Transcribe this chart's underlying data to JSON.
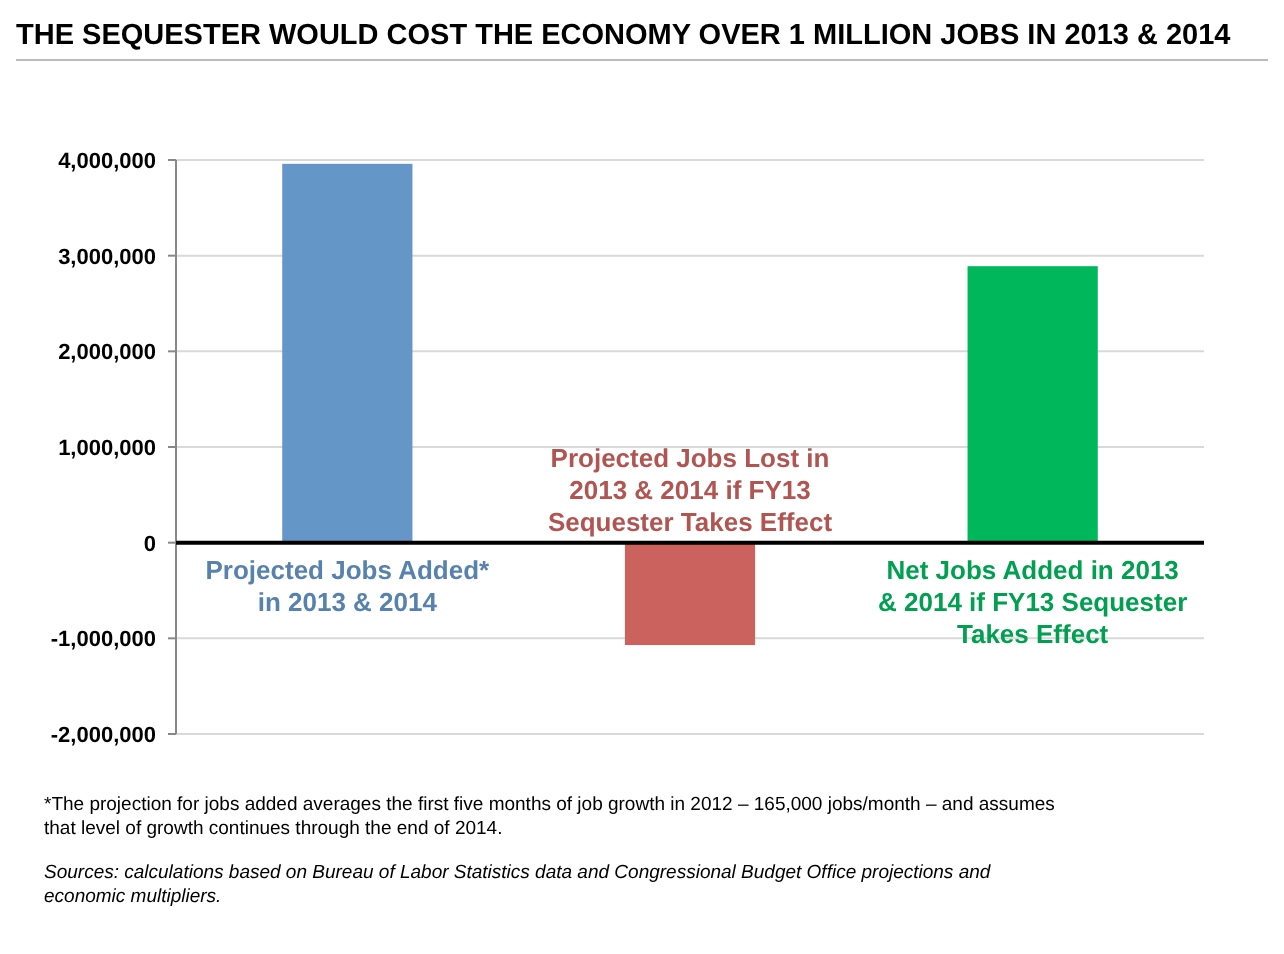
{
  "chart_data": {
    "type": "bar",
    "title": "THE SEQUESTER WOULD COST THE ECONOMY OVER 1 MILLION JOBS IN 2013 & 2014",
    "categories": [
      "Projected Jobs Added*\nin 2013 & 2014",
      "Projected Jobs Lost in\n2013 & 2014 if FY13\nSequester Takes Effect",
      "Net Jobs Added in 2013\n& 2014 if FY13 Sequester\nTakes Effect"
    ],
    "values": [
      3960000,
      -1070000,
      2890000
    ],
    "colors": [
      "#6496c8",
      "#cb625d",
      "#00b85c"
    ],
    "ylim": [
      -2000000,
      4000000
    ],
    "yticks": [
      {
        "value": -2000000,
        "label": "-2,000,000"
      },
      {
        "value": -1000000,
        "label": "-1,000,000"
      },
      0,
      {
        "value": 1000000,
        "label": "1,000,000"
      },
      {
        "value": 2000000,
        "label": "2,000,000"
      },
      {
        "value": 3000000,
        "label": "3,000,000"
      },
      {
        "value": 4000000,
        "label": "4,000,000"
      }
    ],
    "grid": "y",
    "annotations": [
      "*The projection for jobs added averages the first five months of job growth in 2012 – 165,000 jobs/month – and assumes that level of growth continues through the end of 2014.",
      "Sources: calculations based on Bureau of Labor Statistics data and Congressional Budget Office projections and economic multipliers."
    ]
  }
}
